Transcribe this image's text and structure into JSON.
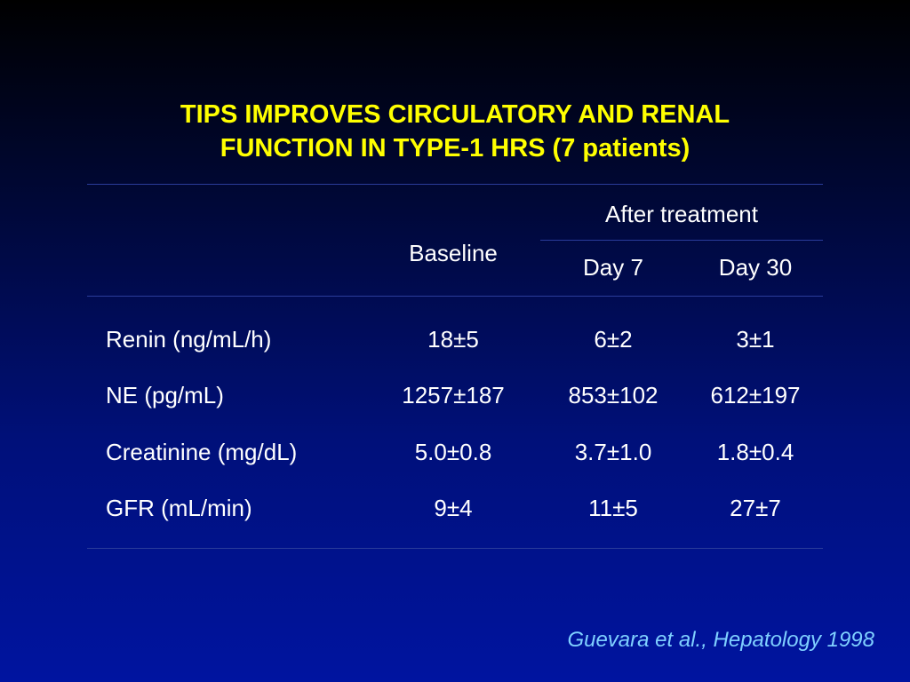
{
  "title": {
    "line1": "TIPS IMPROVES CIRCULATORY AND RENAL",
    "line2": "FUNCTION IN TYPE-1 HRS (7 patients)"
  },
  "table": {
    "header": {
      "baseline": "Baseline",
      "after_treatment": "After treatment",
      "day7": "Day 7",
      "day30": "Day 30"
    },
    "rows": [
      {
        "label": "Renin (ng/mL/h)",
        "baseline": "18±5",
        "day7": "6±2",
        "day30": "3±1"
      },
      {
        "label": "NE (pg/mL)",
        "baseline": "1257±187",
        "day7": "853±102",
        "day30": "612±197"
      },
      {
        "label": "Creatinine (mg/dL)",
        "baseline": "5.0±0.8",
        "day7": "3.7±1.0",
        "day30": "1.8±0.4"
      },
      {
        "label": "GFR (mL/min)",
        "baseline": "9±4",
        "day7": "11±5",
        "day30": "27±7"
      }
    ]
  },
  "citation": "Guevara et al., Hepatology 1998",
  "colors": {
    "title": "#ffff00",
    "text": "#ffffff",
    "citation": "#7fd0ff",
    "background_top": "#000000",
    "background_bottom": "#0014a0"
  }
}
